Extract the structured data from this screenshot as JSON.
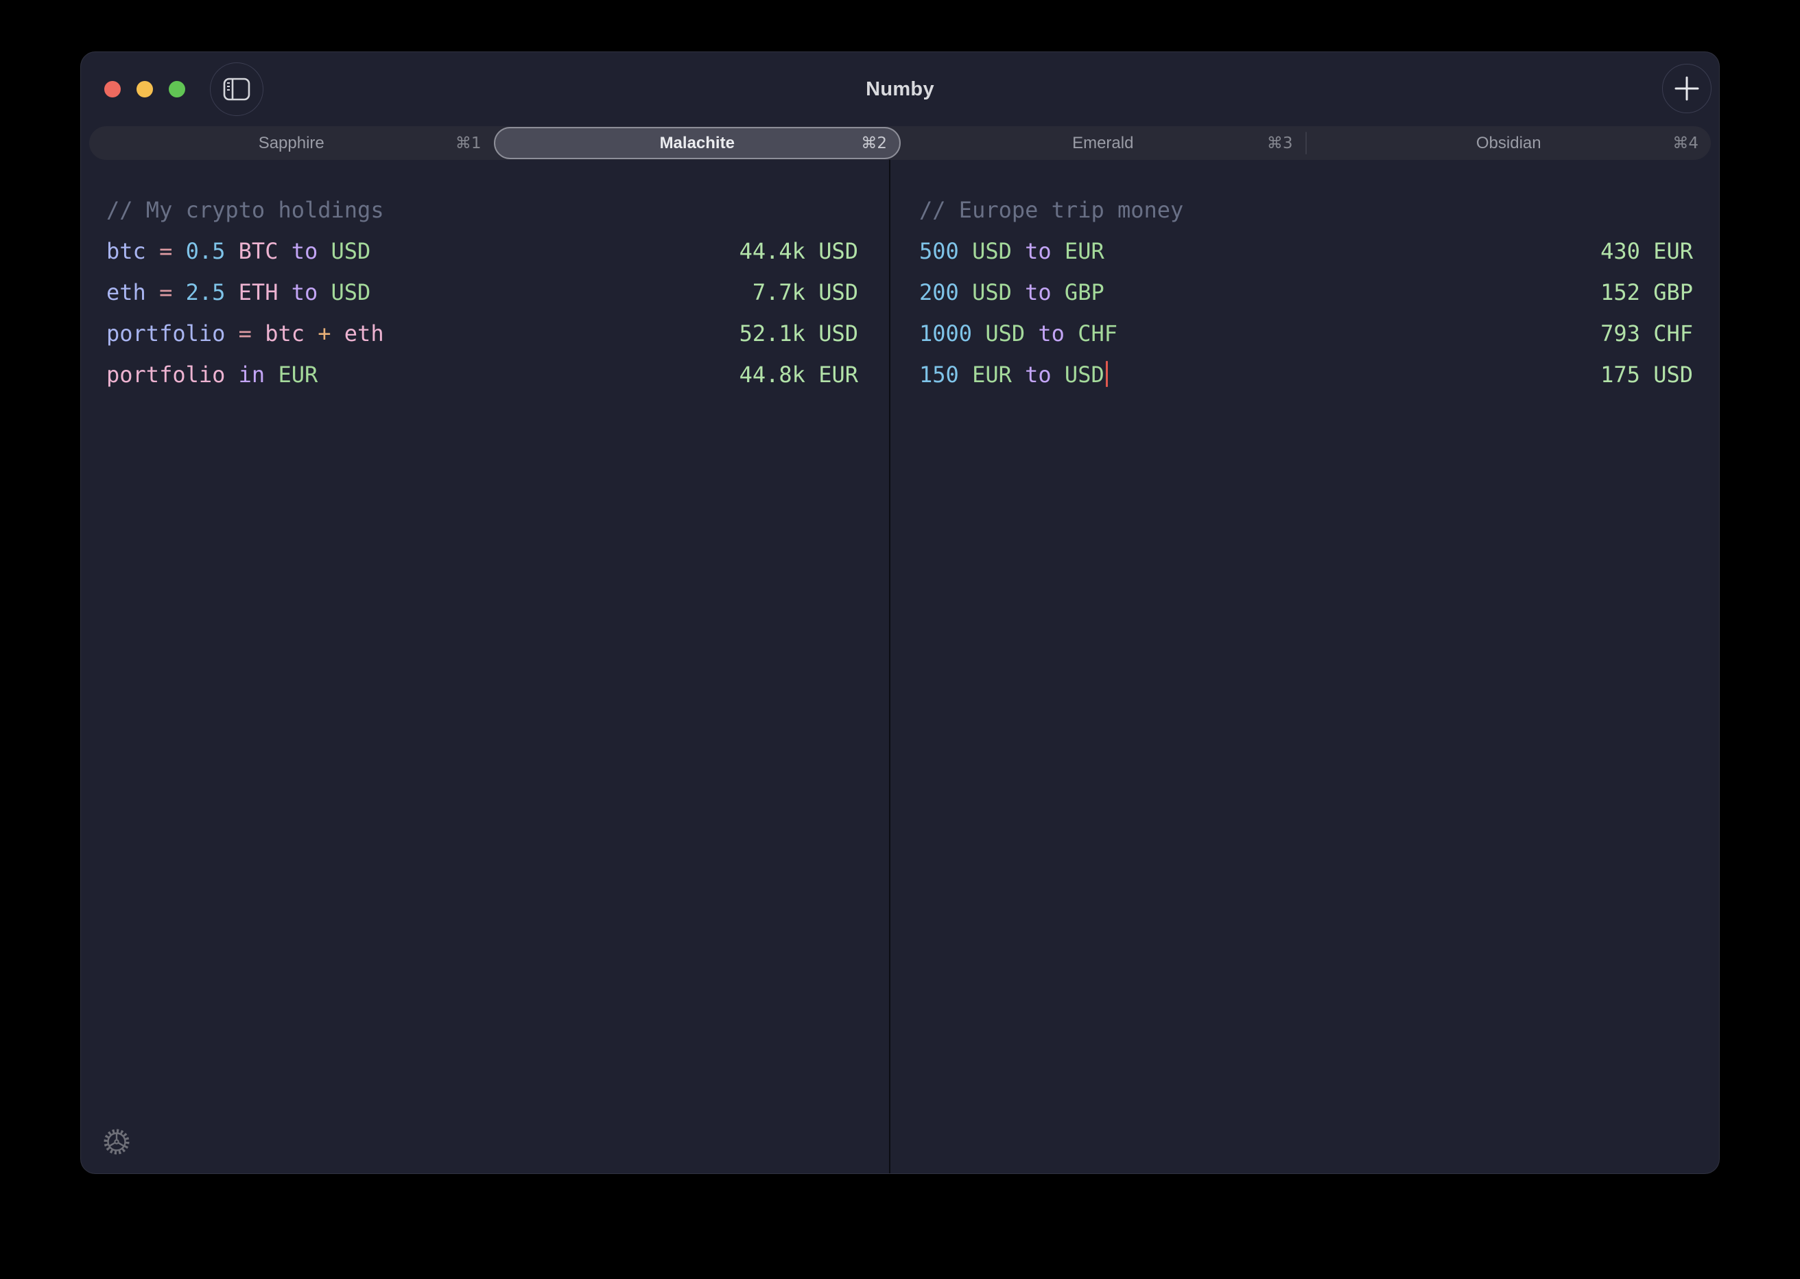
{
  "app": {
    "title": "Numby"
  },
  "titlebar": {
    "traffic_lights": [
      "close",
      "minimize",
      "zoom"
    ],
    "new_tab_label": "+"
  },
  "tabs": [
    {
      "label": "Sapphire",
      "shortcut": "⌘1",
      "selected": false
    },
    {
      "label": "Malachite",
      "shortcut": "⌘2",
      "selected": true
    },
    {
      "label": "Emerald",
      "shortcut": "⌘3",
      "selected": false
    },
    {
      "label": "Obsidian",
      "shortcut": "⌘4",
      "selected": false
    }
  ],
  "colors": {
    "comment": "#697086",
    "var": "#a9b5f1",
    "eq": "#dd9ba2",
    "num": "#7fc4e9",
    "pink": "#edb3d1",
    "kw": "#c3a5f6",
    "unit": "#a5da9b",
    "plus": "#e7af77",
    "result": "#b2e2a8",
    "cursor": "#e0584e",
    "traffic_red": "#ee6a5f",
    "traffic_yellow": "#f5bf4f",
    "traffic_green": "#61c554",
    "selected_tab_bg": "#4a4b58",
    "selected_tab_border": "#8e8f99"
  },
  "panes": [
    {
      "id": "left",
      "lines": [
        {
          "tokens": [
            {
              "t": "// My crypto holdings",
              "c": "comment"
            }
          ],
          "result": ""
        },
        {
          "tokens": [
            {
              "t": "btc ",
              "c": "var"
            },
            {
              "t": "= ",
              "c": "eq"
            },
            {
              "t": "0.5 ",
              "c": "num"
            },
            {
              "t": "BTC ",
              "c": "pink"
            },
            {
              "t": "to ",
              "c": "kw"
            },
            {
              "t": "USD",
              "c": "unit"
            }
          ],
          "result": "44.4k USD"
        },
        {
          "tokens": [
            {
              "t": "eth ",
              "c": "var"
            },
            {
              "t": "= ",
              "c": "eq"
            },
            {
              "t": "2.5 ",
              "c": "num"
            },
            {
              "t": "ETH ",
              "c": "pink"
            },
            {
              "t": "to ",
              "c": "kw"
            },
            {
              "t": "USD",
              "c": "unit"
            }
          ],
          "result": "7.7k USD"
        },
        {
          "tokens": [
            {
              "t": "portfolio ",
              "c": "var"
            },
            {
              "t": "= ",
              "c": "eq"
            },
            {
              "t": "btc ",
              "c": "pink"
            },
            {
              "t": "+ ",
              "c": "plus"
            },
            {
              "t": "eth",
              "c": "pink"
            }
          ],
          "result": "52.1k USD"
        },
        {
          "tokens": [
            {
              "t": "portfolio ",
              "c": "pink"
            },
            {
              "t": "in ",
              "c": "kw"
            },
            {
              "t": "EUR",
              "c": "unit"
            }
          ],
          "result": "44.8k EUR"
        }
      ]
    },
    {
      "id": "right",
      "lines": [
        {
          "tokens": [
            {
              "t": "// Europe trip money",
              "c": "comment"
            }
          ],
          "result": ""
        },
        {
          "tokens": [
            {
              "t": "500 ",
              "c": "num"
            },
            {
              "t": "USD ",
              "c": "unit"
            },
            {
              "t": "to ",
              "c": "kw"
            },
            {
              "t": "EUR",
              "c": "unit"
            }
          ],
          "result": "430 EUR"
        },
        {
          "tokens": [
            {
              "t": "200 ",
              "c": "num"
            },
            {
              "t": "USD ",
              "c": "unit"
            },
            {
              "t": "to ",
              "c": "kw"
            },
            {
              "t": "GBP",
              "c": "unit"
            }
          ],
          "result": "152 GBP"
        },
        {
          "tokens": [
            {
              "t": "1000 ",
              "c": "num"
            },
            {
              "t": "USD ",
              "c": "unit"
            },
            {
              "t": "to ",
              "c": "kw"
            },
            {
              "t": "CHF",
              "c": "unit"
            }
          ],
          "result": "793 CHF"
        },
        {
          "tokens": [
            {
              "t": "150 ",
              "c": "num"
            },
            {
              "t": "EUR ",
              "c": "unit"
            },
            {
              "t": "to ",
              "c": "kw"
            },
            {
              "t": "USD",
              "c": "unit"
            }
          ],
          "cursor": true,
          "result": "175 USD"
        }
      ]
    }
  ]
}
